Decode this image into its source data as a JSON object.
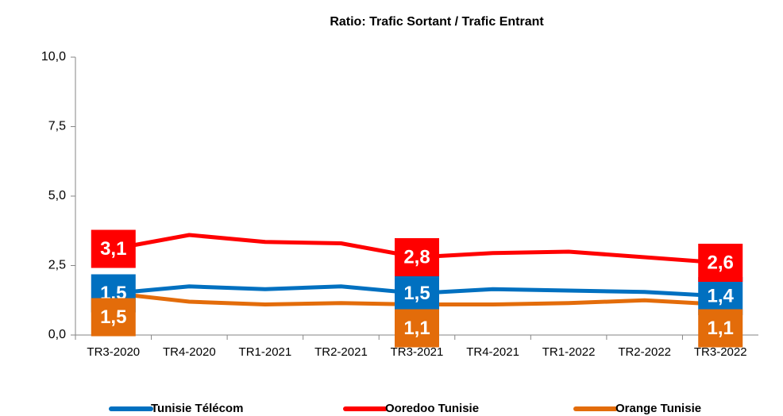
{
  "chart_data": {
    "type": "line",
    "title": "Ratio: Trafic Sortant / Trafic Entrant",
    "categories": [
      "TR3-2020",
      "TR4-2020",
      "TR1-2021",
      "TR2-2021",
      "TR3-2021",
      "TR4-2021",
      "TR1-2022",
      "TR2-2022",
      "TR3-2022"
    ],
    "series": [
      {
        "name": "Tunisie Télécom",
        "color": "#0070c0",
        "values": [
          1.5,
          1.75,
          1.65,
          1.75,
          1.5,
          1.65,
          1.6,
          1.55,
          1.4
        ],
        "value_labels": [
          "1,5",
          null,
          null,
          null,
          "1,5",
          null,
          null,
          null,
          "1,4"
        ]
      },
      {
        "name": "Ooredoo Tunisie",
        "color": "#ff0000",
        "values": [
          3.1,
          3.6,
          3.35,
          3.3,
          2.8,
          2.95,
          3.0,
          2.8,
          2.6
        ],
        "value_labels": [
          "3,1",
          null,
          null,
          null,
          "2,8",
          null,
          null,
          null,
          "2,6"
        ]
      },
      {
        "name": "Orange Tunisie",
        "color": "#e36c0a",
        "values": [
          1.5,
          1.2,
          1.1,
          1.15,
          1.1,
          1.1,
          1.15,
          1.25,
          1.1
        ],
        "value_labels": [
          "1,5",
          null,
          null,
          null,
          "1,1",
          null,
          null,
          null,
          "1,1"
        ]
      }
    ],
    "ylim": [
      0,
      10
    ],
    "yticks": [
      {
        "value": 0,
        "label": "0,0"
      },
      {
        "value": 2.5,
        "label": "2,5"
      },
      {
        "value": 5,
        "label": "5,0"
      },
      {
        "value": 7.5,
        "label": "7,5"
      },
      {
        "value": 10,
        "label": "10,0"
      }
    ],
    "legend": "bottom"
  }
}
